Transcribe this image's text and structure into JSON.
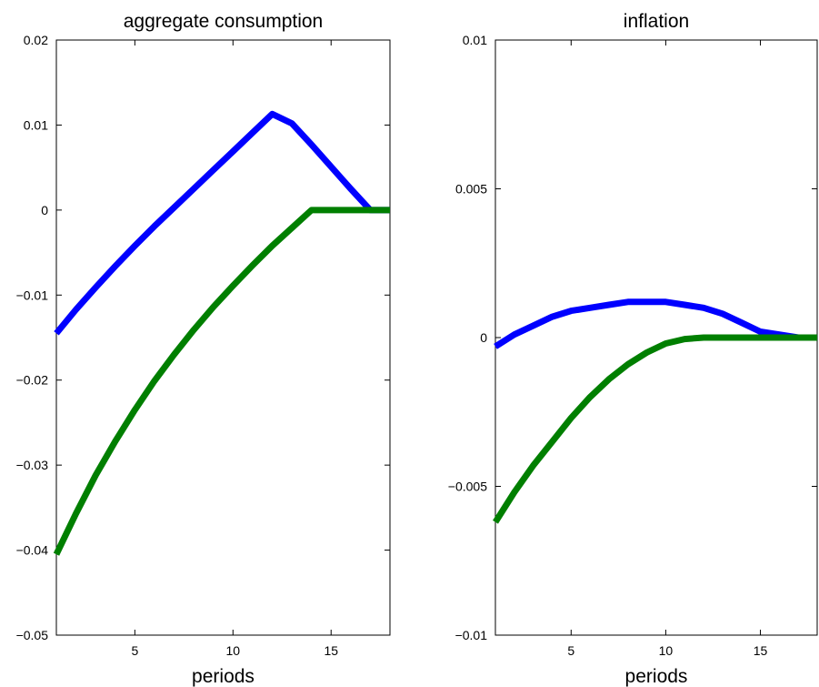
{
  "chart_data": [
    {
      "type": "line",
      "title": "aggregate consumption",
      "xlabel": "periods",
      "ylabel": "",
      "xlim": [
        1,
        18
      ],
      "ylim": [
        -0.05,
        0.02
      ],
      "xticks": [
        5,
        10,
        15
      ],
      "xtick_labels": [
        "5",
        "10",
        "15"
      ],
      "yticks": [
        -0.05,
        -0.04,
        -0.03,
        -0.02,
        -0.01,
        0,
        0.01,
        0.02
      ],
      "ytick_labels": [
        "−0.05",
        "−0.04",
        "−0.03",
        "−0.02",
        "−0.01",
        "0",
        "0.01",
        "0.02"
      ],
      "grid": false,
      "x": [
        1,
        2,
        3,
        4,
        5,
        6,
        7,
        8,
        9,
        10,
        11,
        12,
        13,
        14,
        15,
        16,
        17,
        18
      ],
      "series": [
        {
          "color": "#0000ff",
          "values": [
            -0.0145,
            -0.0117,
            -0.0091,
            -0.0066,
            -0.0042,
            -0.0019,
            0.0003,
            0.0025,
            0.0047,
            0.0069,
            0.0091,
            0.0113,
            0.0102,
            0.0077,
            0.0051,
            0.0025,
            0.0,
            0.0
          ]
        },
        {
          "color": "#007f00",
          "values": [
            -0.0405,
            -0.0357,
            -0.0312,
            -0.0272,
            -0.0235,
            -0.0201,
            -0.017,
            -0.0141,
            -0.0114,
            -0.0089,
            -0.0065,
            -0.0042,
            -0.0021,
            0.0,
            0.0,
            0.0,
            0.0,
            0.0
          ]
        }
      ]
    },
    {
      "type": "line",
      "title": "inflation",
      "xlabel": "periods",
      "ylabel": "",
      "xlim": [
        1,
        18
      ],
      "ylim": [
        -0.01,
        0.01
      ],
      "xticks": [
        5,
        10,
        15
      ],
      "xtick_labels": [
        "5",
        "10",
        "15"
      ],
      "yticks": [
        -0.01,
        -0.005,
        0,
        0.005,
        0.01
      ],
      "ytick_labels": [
        "−0.01",
        "−0.005",
        "0",
        "0.005",
        "0.01"
      ],
      "grid": false,
      "x": [
        1,
        2,
        3,
        4,
        5,
        6,
        7,
        8,
        9,
        10,
        11,
        12,
        13,
        14,
        15,
        16,
        17,
        18
      ],
      "series": [
        {
          "color": "#0000ff",
          "values": [
            -0.0003,
            0.0001,
            0.0004,
            0.0007,
            0.0009,
            0.001,
            0.0011,
            0.0012,
            0.0012,
            0.0012,
            0.0011,
            0.001,
            0.0008,
            0.0005,
            0.0002,
            0.0001,
            0.0,
            0.0
          ]
        },
        {
          "color": "#007f00",
          "values": [
            -0.0062,
            -0.0052,
            -0.0043,
            -0.0035,
            -0.0027,
            -0.002,
            -0.0014,
            -0.0009,
            -0.0005,
            -0.0002,
            -5e-05,
            0.0,
            0.0,
            0.0,
            0.0,
            0.0,
            0.0,
            0.0
          ]
        }
      ]
    }
  ]
}
